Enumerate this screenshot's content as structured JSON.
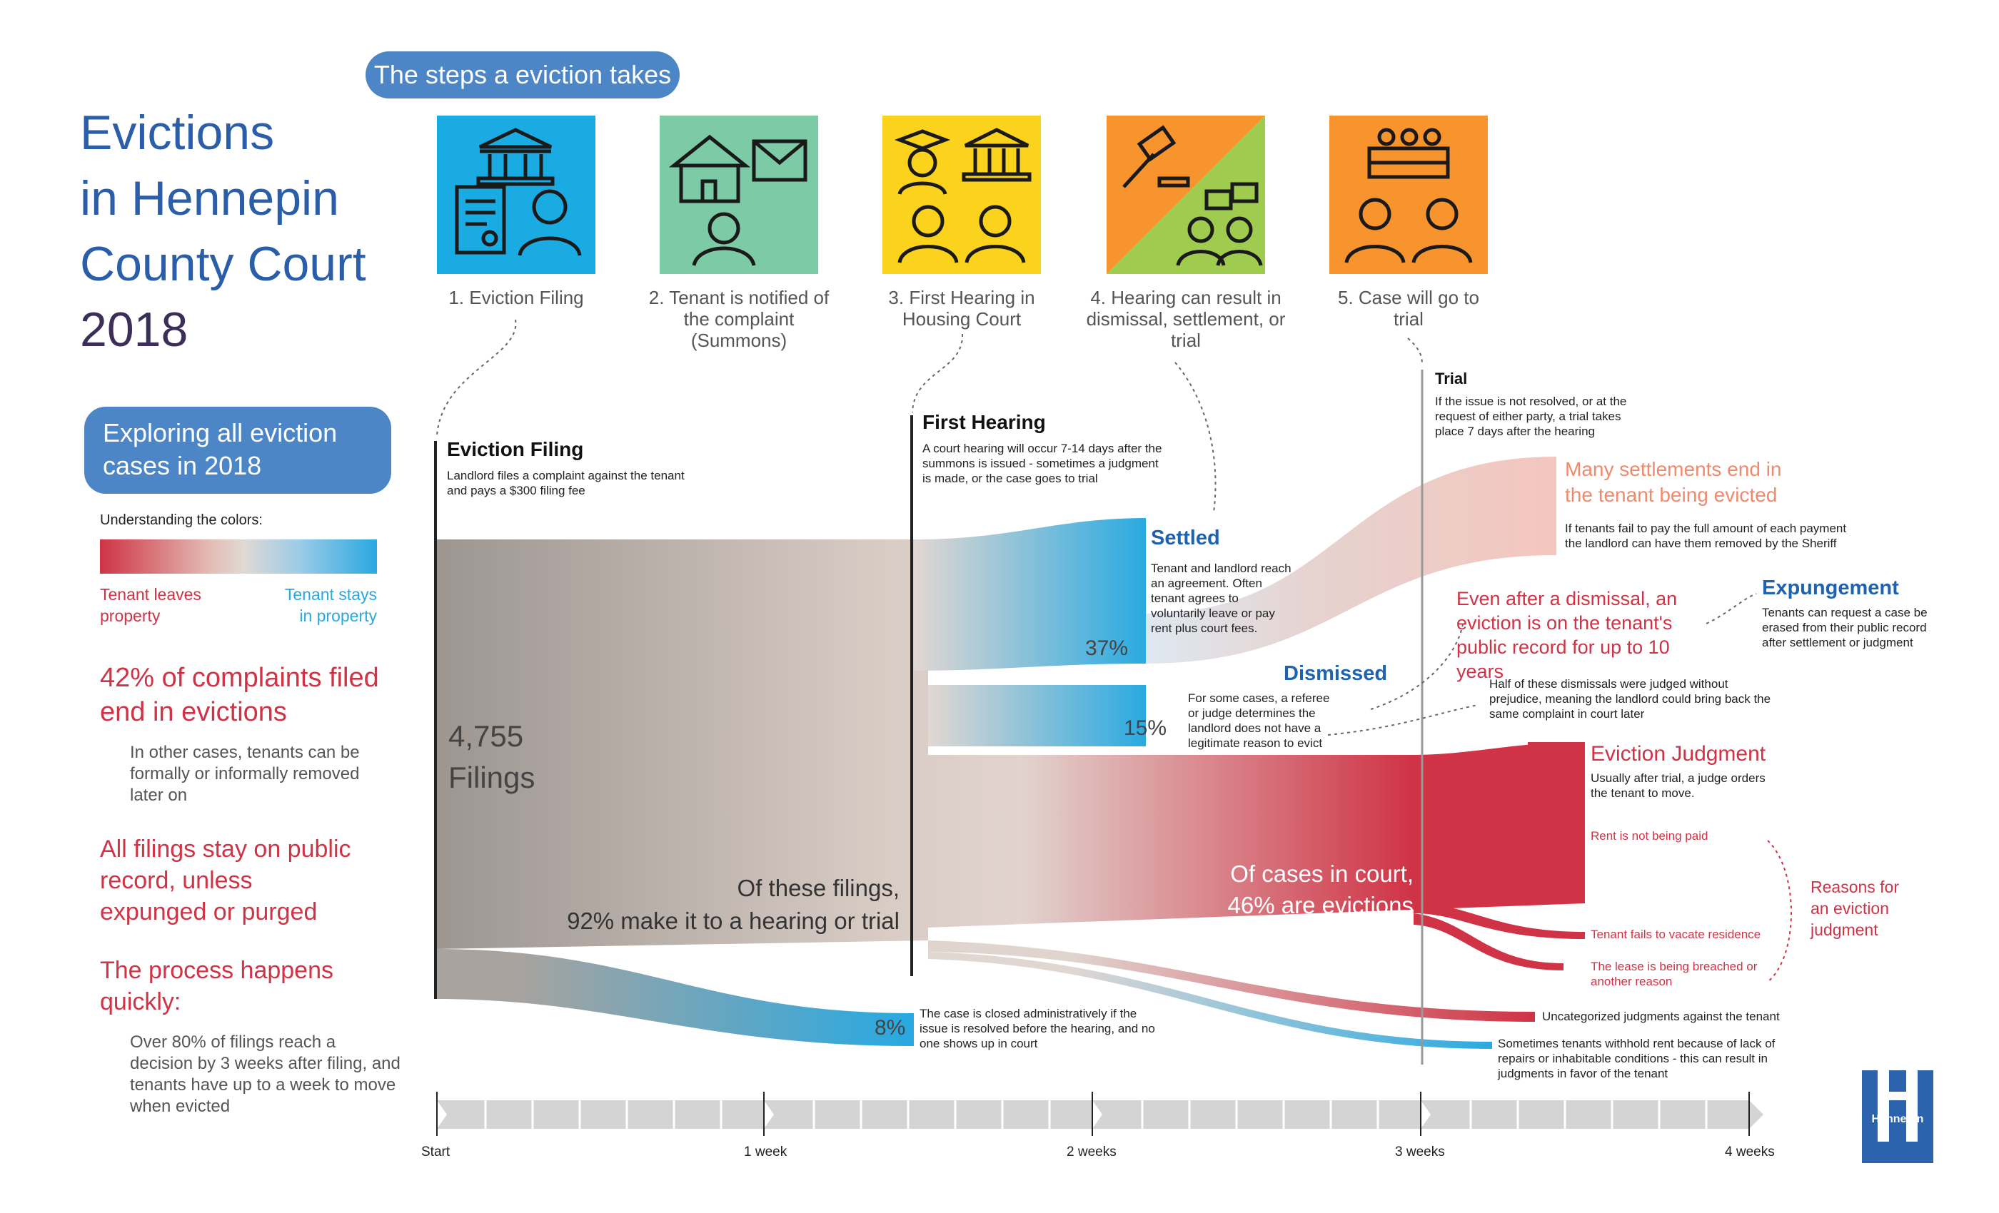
{
  "title": {
    "line1": "Evictions",
    "line2": "in Hennepin",
    "line3": "County Court",
    "line4": "2018"
  },
  "steps_pill": "The steps a eviction takes",
  "steps": [
    {
      "label": "1. Eviction Filing",
      "color": "#1aabe3"
    },
    {
      "label": "2. Tenant is notified of the complaint (Summons)",
      "color": "#7ccaa6"
    },
    {
      "label": "3. First Hearing in Housing Court",
      "color": "#fbd21c"
    },
    {
      "label": "4. Hearing can result in dismissal, settlement, or trial",
      "color": "#f7942e"
    },
    {
      "label": "5. Case will go to trial",
      "color": "#f7942e"
    }
  ],
  "explore_pill": "Exploring all eviction cases in 2018",
  "legend": {
    "title": "Understanding the colors:",
    "left": "Tenant leaves property",
    "right": "Tenant stays in property"
  },
  "side": {
    "stat1": "42% of complaints filed end in evictions",
    "stat1_note": "In other cases, tenants can be formally or informally removed later on",
    "stat2": "All filings stay on public record, unless expunged or purged",
    "stat3": "The process happens quickly:",
    "stat3_note": "Over 80% of filings reach a decision by 3 weeks after filing, and tenants have up to a week to move when evicted"
  },
  "flow": {
    "filing_head": "Eviction Filing",
    "filing_desc": "Landlord files a complaint against the tenant and pays a $300 filing fee",
    "filings_count": "4,755",
    "filings_label": "Filings",
    "hearing_head": "First Hearing",
    "hearing_desc": "A court hearing will occur 7-14 days after the summons is issued - sometimes a judgment is made, or the case goes to trial",
    "hearing_pct_text1": "Of these filings,",
    "hearing_pct_text2": "92% make it to a hearing or trial",
    "closed_pct": "8%",
    "closed_desc": "The case is closed administratively if the issue is resolved before the hearing, and no one shows up in court",
    "settled_head": "Settled",
    "settled_pct": "37%",
    "settled_desc": "Tenant and landlord reach an agreement. Often tenant agrees to voluntarily leave or pay rent plus court fees.",
    "dismissed_head": "Dismissed",
    "dismissed_pct": "15%",
    "dismissed_desc": "For some cases, a referee or judge determines the landlord does not have a legitimate reason to evict",
    "trial_head": "Trial",
    "trial_desc": "If the issue is not resolved, or at the request of either party, a trial takes place 7 days after the hearing",
    "settle_evict_head": "Many settlements end in the tenant being evicted",
    "settle_evict_desc": "If tenants fail to pay the full amount of each payment the landlord can have them removed by the Sheriff",
    "expunge_head": "Expungement",
    "expunge_desc": "Tenants can request a case be erased from their public record after settlement or judgment",
    "dismiss_record": "Even after a dismissal, an eviction is on the tenant's public record for up to 10 years",
    "dismiss_half": "Half of these dismissals were judged without prejudice, meaning the landlord could bring back the same complaint in court later",
    "court_text1": "Of cases in court,",
    "court_text2": "46% are evictions",
    "judgment_head": "Eviction Judgment",
    "judgment_desc": "Usually after trial, a judge orders the tenant to move.",
    "reason1": "Rent is not being paid",
    "reason2": "Tenant fails to vacate residence",
    "reason3": "The lease is being breached or another reason",
    "reasons_label": "Reasons for an eviction judgment",
    "uncat": "Uncategorized judgments against the tenant",
    "withhold": "Sometimes tenants withhold rent because of lack of repairs or inhabitable conditions - this can result in judgments in favor of the tenant"
  },
  "timeline": [
    "Start",
    "1 week",
    "2 weeks",
    "3 weeks",
    "4 weeks"
  ],
  "logo": "Hennepin"
}
